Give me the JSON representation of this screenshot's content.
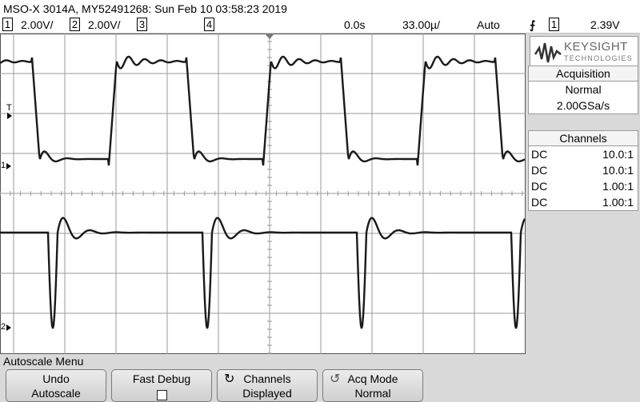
{
  "header": {
    "title": "MSO-X 3014A, MY52491268: Sun Feb 10 03:58:23 2019"
  },
  "status": {
    "ch1_num": "1",
    "ch1_scale": "2.00V/",
    "ch2_num": "2",
    "ch2_scale": "2.00V/",
    "ch3_num": "3",
    "ch4_num": "4",
    "time_offset": "0.0s",
    "time_scale": "33.00µ/",
    "trigger_mode": "Auto",
    "trigger_icon": "rising-edge-trigger-icon",
    "trigger_source": "1",
    "trigger_level": "2.39V"
  },
  "markers": {
    "trigger_level": "T",
    "ch1": "1",
    "ch2": "2"
  },
  "logo": {
    "brand": "KEYSIGHT",
    "sub": "TECHNOLOGIES"
  },
  "acquisition": {
    "title": "Acquisition",
    "mode": "Normal",
    "rate": "2.00GSa/s"
  },
  "channels": {
    "title": "Channels",
    "rows": [
      {
        "coupling": "DC",
        "probe": "10.0:1"
      },
      {
        "coupling": "DC",
        "probe": "10.0:1"
      },
      {
        "coupling": "DC",
        "probe": "1.00:1"
      },
      {
        "coupling": "DC",
        "probe": "1.00:1"
      }
    ]
  },
  "softkeys": {
    "menu_label": "Autoscale Menu",
    "undo_l1": "Undo",
    "undo_l2": "Autoscale",
    "fastdebug_l1": "Fast Debug",
    "channels_l1": "Channels",
    "channels_l2": "Displayed",
    "acqmode_l1": "Acq Mode",
    "acqmode_l2": "Normal"
  },
  "colors": {
    "trace": "#1a1a1a",
    "grid": "#9a9a9a",
    "screen_bg": "#ffffff"
  }
}
